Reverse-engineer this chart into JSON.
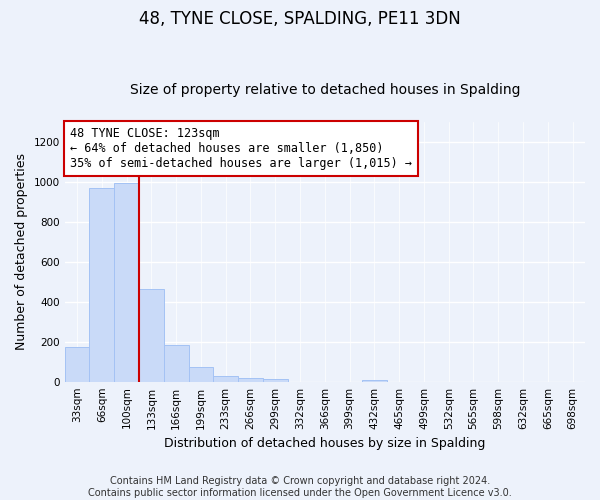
{
  "title": "48, TYNE CLOSE, SPALDING, PE11 3DN",
  "subtitle": "Size of property relative to detached houses in Spalding",
  "xlabel": "Distribution of detached houses by size in Spalding",
  "ylabel": "Number of detached properties",
  "bin_labels": [
    "33sqm",
    "66sqm",
    "100sqm",
    "133sqm",
    "166sqm",
    "199sqm",
    "233sqm",
    "266sqm",
    "299sqm",
    "332sqm",
    "366sqm",
    "399sqm",
    "432sqm",
    "465sqm",
    "499sqm",
    "532sqm",
    "565sqm",
    "598sqm",
    "632sqm",
    "665sqm",
    "698sqm"
  ],
  "bar_values": [
    175,
    970,
    995,
    465,
    185,
    75,
    30,
    20,
    15,
    0,
    0,
    0,
    10,
    0,
    0,
    0,
    0,
    0,
    0,
    0,
    0
  ],
  "bar_color": "#c9daf8",
  "bar_edge_color": "#a4c2f4",
  "red_line_x": 2.5,
  "annotation_text": "48 TYNE CLOSE: 123sqm\n← 64% of detached houses are smaller (1,850)\n35% of semi-detached houses are larger (1,015) →",
  "annotation_box_color": "#ffffff",
  "annotation_box_edge_color": "#cc0000",
  "ylim": [
    0,
    1300
  ],
  "yticks": [
    0,
    200,
    400,
    600,
    800,
    1000,
    1200
  ],
  "footer_text": "Contains HM Land Registry data © Crown copyright and database right 2024.\nContains public sector information licensed under the Open Government Licence v3.0.",
  "background_color": "#edf2fb",
  "plot_background": "#edf2fb",
  "grid_color": "#ffffff",
  "title_fontsize": 12,
  "subtitle_fontsize": 10,
  "axis_label_fontsize": 9,
  "tick_fontsize": 7.5,
  "footer_fontsize": 7,
  "annot_fontsize": 8.5
}
